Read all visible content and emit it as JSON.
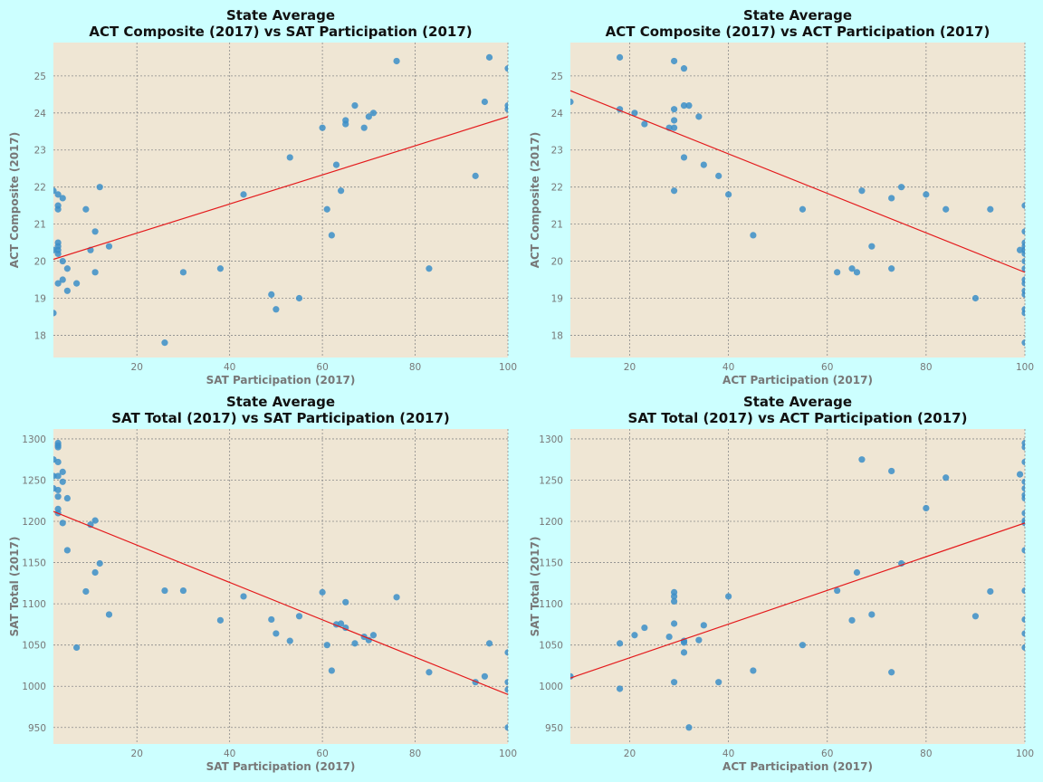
{
  "colors": {
    "figure_bg": "#ccffff",
    "axes_bg": "#efe6d4",
    "point": "#3b8ec8",
    "fit_line": "#e41a1c",
    "grid": "#8a8a8a",
    "text": "#777777"
  },
  "chart_data": [
    {
      "type": "scatter",
      "title": [
        "State Average",
        "ACT Composite (2017) vs SAT Participation (2017)"
      ],
      "xlabel": "SAT Participation (2017)",
      "ylabel": "ACT Composite (2017)",
      "xlim": [
        2,
        100
      ],
      "ylim": [
        17.4,
        25.9
      ],
      "xticks": [
        20,
        40,
        60,
        80,
        100
      ],
      "yticks": [
        18,
        19,
        20,
        21,
        22,
        23,
        24,
        25
      ],
      "grid": true,
      "fit_line": [
        [
          2,
          20.05
        ],
        [
          100,
          23.9
        ]
      ],
      "points": [
        [
          2,
          21.9
        ],
        [
          3,
          21.8
        ],
        [
          4,
          21.7
        ],
        [
          3,
          21.5
        ],
        [
          3,
          21.4
        ],
        [
          3,
          20.5
        ],
        [
          3,
          20.4
        ],
        [
          3,
          20.3
        ],
        [
          3,
          20.2
        ],
        [
          2,
          20.3
        ],
        [
          4,
          20
        ],
        [
          5,
          19.8
        ],
        [
          3,
          19.4
        ],
        [
          4,
          19.5
        ],
        [
          5,
          19.2
        ],
        [
          7,
          19.4
        ],
        [
          9,
          21.4
        ],
        [
          11,
          20.8
        ],
        [
          12,
          22
        ],
        [
          10,
          20.3
        ],
        [
          11,
          19.7
        ],
        [
          14,
          20.4
        ],
        [
          2,
          18.6
        ],
        [
          26,
          17.8
        ],
        [
          30,
          19.7
        ],
        [
          38,
          19.8
        ],
        [
          43,
          21.8
        ],
        [
          49,
          19.1
        ],
        [
          50,
          18.7
        ],
        [
          53,
          22.8
        ],
        [
          55,
          19
        ],
        [
          60,
          23.6
        ],
        [
          61,
          21.4
        ],
        [
          62,
          20.7
        ],
        [
          63,
          22.6
        ],
        [
          64,
          21.9
        ],
        [
          65,
          23.8
        ],
        [
          65,
          23.7
        ],
        [
          67,
          24.2
        ],
        [
          69,
          23.6
        ],
        [
          70,
          23.9
        ],
        [
          71,
          24
        ],
        [
          76,
          25.4
        ],
        [
          83,
          19.8
        ],
        [
          93,
          22.3
        ],
        [
          95,
          24.3
        ],
        [
          96,
          25.5
        ],
        [
          100,
          25.2
        ],
        [
          100,
          24.2
        ],
        [
          100,
          24.1
        ]
      ]
    },
    {
      "type": "scatter",
      "title": [
        "State Average",
        "ACT Composite (2017) vs ACT Participation (2017)"
      ],
      "xlabel": "ACT Participation (2017)",
      "ylabel": "ACT Composite (2017)",
      "xlim": [
        8,
        100
      ],
      "ylim": [
        17.4,
        25.9
      ],
      "xticks": [
        20,
        40,
        60,
        80,
        100
      ],
      "yticks": [
        18,
        19,
        20,
        21,
        22,
        23,
        24,
        25
      ],
      "grid": true,
      "fit_line": [
        [
          8,
          24.6
        ],
        [
          100,
          19.7
        ]
      ],
      "points": [
        [
          8,
          24.3
        ],
        [
          18,
          25.5
        ],
        [
          18,
          24.1
        ],
        [
          21,
          24
        ],
        [
          23,
          23.7
        ],
        [
          28,
          23.6
        ],
        [
          29,
          23.6
        ],
        [
          29,
          23.8
        ],
        [
          29,
          24.1
        ],
        [
          29,
          25.4
        ],
        [
          31,
          25.2
        ],
        [
          31,
          24.2
        ],
        [
          32,
          24.2
        ],
        [
          34,
          23.9
        ],
        [
          29,
          21.9
        ],
        [
          31,
          22.8
        ],
        [
          35,
          22.6
        ],
        [
          38,
          22.3
        ],
        [
          40,
          21.8
        ],
        [
          45,
          20.7
        ],
        [
          55,
          21.4
        ],
        [
          62,
          19.7
        ],
        [
          65,
          19.8
        ],
        [
          66,
          19.7
        ],
        [
          67,
          21.9
        ],
        [
          69,
          20.4
        ],
        [
          73,
          21.7
        ],
        [
          73,
          19.8
        ],
        [
          75,
          22
        ],
        [
          80,
          21.8
        ],
        [
          84,
          21.4
        ],
        [
          90,
          19
        ],
        [
          93,
          21.4
        ],
        [
          99,
          20.3
        ],
        [
          100,
          21.5
        ],
        [
          100,
          20.8
        ],
        [
          100,
          20.5
        ],
        [
          100,
          20.4
        ],
        [
          100,
          20.3
        ],
        [
          100,
          20.2
        ],
        [
          100,
          20
        ],
        [
          100,
          19.8
        ],
        [
          100,
          19.5
        ],
        [
          100,
          19.4
        ],
        [
          100,
          19.2
        ],
        [
          100,
          19.1
        ],
        [
          100,
          18.7
        ],
        [
          100,
          18.6
        ],
        [
          100,
          17.8
        ]
      ]
    },
    {
      "type": "scatter",
      "title": [
        "State Average",
        "SAT Total (2017) vs SAT Participation (2017)"
      ],
      "xlabel": "SAT Participation (2017)",
      "ylabel": "SAT Total (2017)",
      "xlim": [
        2,
        100
      ],
      "ylim": [
        930,
        1312
      ],
      "xticks": [
        20,
        40,
        60,
        80,
        100
      ],
      "yticks": [
        950,
        1000,
        1050,
        1100,
        1150,
        1200,
        1250,
        1300
      ],
      "grid": true,
      "fit_line": [
        [
          2,
          1212
        ],
        [
          100,
          990
        ]
      ],
      "points": [
        [
          3,
          1295
        ],
        [
          3,
          1292
        ],
        [
          3,
          1290
        ],
        [
          2,
          1275
        ],
        [
          3,
          1272
        ],
        [
          4,
          1260
        ],
        [
          2,
          1255
        ],
        [
          3,
          1255
        ],
        [
          4,
          1248
        ],
        [
          2,
          1240
        ],
        [
          3,
          1238
        ],
        [
          3,
          1230
        ],
        [
          5,
          1228
        ],
        [
          3,
          1215
        ],
        [
          3,
          1210
        ],
        [
          4,
          1198
        ],
        [
          5,
          1165
        ],
        [
          7,
          1047
        ],
        [
          9,
          1115
        ],
        [
          10,
          1196
        ],
        [
          11,
          1201
        ],
        [
          11,
          1138
        ],
        [
          12,
          1149
        ],
        [
          14,
          1087
        ],
        [
          26,
          1116
        ],
        [
          30,
          1116
        ],
        [
          38,
          1080
        ],
        [
          43,
          1109
        ],
        [
          49,
          1081
        ],
        [
          50,
          1064
        ],
        [
          53,
          1055
        ],
        [
          55,
          1085
        ],
        [
          60,
          1114
        ],
        [
          61,
          1050
        ],
        [
          62,
          1019
        ],
        [
          63,
          1075
        ],
        [
          64,
          1076
        ],
        [
          65,
          1102
        ],
        [
          65,
          1071
        ],
        [
          67,
          1052
        ],
        [
          69,
          1060
        ],
        [
          70,
          1056
        ],
        [
          71,
          1062
        ],
        [
          76,
          1108
        ],
        [
          83,
          1017
        ],
        [
          93,
          1005
        ],
        [
          95,
          1012
        ],
        [
          96,
          1052
        ],
        [
          100,
          1041
        ],
        [
          100,
          1005
        ],
        [
          100,
          996
        ],
        [
          100,
          950
        ]
      ]
    },
    {
      "type": "scatter",
      "title": [
        "State Average",
        "SAT Total (2017) vs ACT Participation (2017)"
      ],
      "xlabel": "ACT Participation (2017)",
      "ylabel": "SAT Total (2017)",
      "xlim": [
        8,
        100
      ],
      "ylim": [
        930,
        1312
      ],
      "xticks": [
        20,
        40,
        60,
        80,
        100
      ],
      "yticks": [
        950,
        1000,
        1050,
        1100,
        1150,
        1200,
        1250,
        1300
      ],
      "grid": true,
      "fit_line": [
        [
          8,
          1010
        ],
        [
          100,
          1198
        ]
      ],
      "points": [
        [
          8,
          1012
        ],
        [
          18,
          1052
        ],
        [
          18,
          997
        ],
        [
          21,
          1062
        ],
        [
          23,
          1071
        ],
        [
          28,
          1060
        ],
        [
          29,
          1005
        ],
        [
          29,
          1076
        ],
        [
          29,
          1103
        ],
        [
          29,
          1109
        ],
        [
          29,
          1114
        ],
        [
          31,
          1041
        ],
        [
          31,
          1055
        ],
        [
          31,
          1053
        ],
        [
          32,
          950
        ],
        [
          34,
          1056
        ],
        [
          35,
          1074
        ],
        [
          38,
          1005
        ],
        [
          40,
          1109
        ],
        [
          45,
          1019
        ],
        [
          55,
          1050
        ],
        [
          62,
          1116
        ],
        [
          65,
          1080
        ],
        [
          66,
          1138
        ],
        [
          67,
          1275
        ],
        [
          69,
          1087
        ],
        [
          73,
          1261
        ],
        [
          73,
          1017
        ],
        [
          75,
          1149
        ],
        [
          80,
          1216
        ],
        [
          84,
          1253
        ],
        [
          90,
          1085
        ],
        [
          93,
          1115
        ],
        [
          99,
          1257
        ],
        [
          100,
          1295
        ],
        [
          100,
          1290
        ],
        [
          100,
          1272
        ],
        [
          100,
          1248
        ],
        [
          100,
          1240
        ],
        [
          100,
          1232
        ],
        [
          100,
          1228
        ],
        [
          100,
          1210
        ],
        [
          100,
          1201
        ],
        [
          100,
          1198
        ],
        [
          100,
          1165
        ],
        [
          100,
          1116
        ],
        [
          100,
          1081
        ],
        [
          100,
          1064
        ],
        [
          100,
          1047
        ]
      ]
    }
  ]
}
